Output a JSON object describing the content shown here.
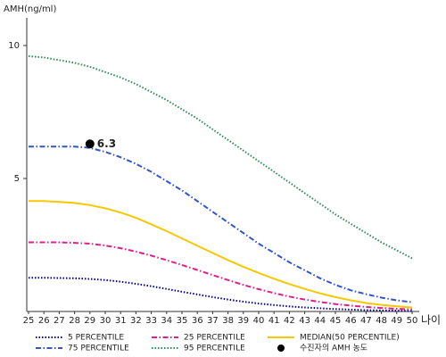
{
  "chart_data": {
    "type": "line",
    "y_label": "AMH(ng/ml)",
    "x_label": "나이",
    "x": [
      25,
      26,
      27,
      28,
      29,
      30,
      31,
      32,
      33,
      34,
      35,
      36,
      37,
      38,
      39,
      40,
      41,
      42,
      43,
      44,
      45,
      46,
      47,
      48,
      49,
      50
    ],
    "xlim": [
      25,
      50
    ],
    "xticks": [
      25,
      26,
      27,
      28,
      29,
      30,
      31,
      32,
      33,
      34,
      35,
      36,
      37,
      38,
      39,
      40,
      41,
      42,
      43,
      44,
      45,
      46,
      47,
      48,
      49,
      50
    ],
    "ylim": [
      0,
      11
    ],
    "yticks": [
      5,
      10
    ],
    "series": [
      {
        "name": "5 PERCENTILE",
        "color": "#00008b",
        "line_style": "dotted",
        "values": [
          1.27,
          1.27,
          1.26,
          1.25,
          1.22,
          1.18,
          1.12,
          1.04,
          0.95,
          0.85,
          0.74,
          0.64,
          0.54,
          0.45,
          0.37,
          0.3,
          0.24,
          0.19,
          0.15,
          0.12,
          0.09,
          0.07,
          0.05,
          0.04,
          0.03,
          0.02
        ]
      },
      {
        "name": "25 PERCENTILE",
        "color": "#e0208a",
        "line_style": "dashdot",
        "values": [
          2.6,
          2.6,
          2.6,
          2.58,
          2.55,
          2.48,
          2.38,
          2.25,
          2.1,
          1.93,
          1.75,
          1.56,
          1.37,
          1.18,
          1.0,
          0.84,
          0.69,
          0.56,
          0.45,
          0.36,
          0.28,
          0.22,
          0.17,
          0.13,
          0.1,
          0.08
        ]
      },
      {
        "name": "MEDIAN(50 PERCENTILE)",
        "color": "#f5c800",
        "line_style": "solid",
        "values": [
          4.15,
          4.15,
          4.12,
          4.08,
          4.0,
          3.88,
          3.72,
          3.52,
          3.28,
          3.02,
          2.75,
          2.47,
          2.2,
          1.93,
          1.68,
          1.45,
          1.23,
          1.03,
          0.85,
          0.68,
          0.54,
          0.42,
          0.32,
          0.25,
          0.19,
          0.15
        ]
      },
      {
        "name": "75 PERCENTILE",
        "color": "#3355cc",
        "line_style": "dashdot",
        "values": [
          6.2,
          6.2,
          6.2,
          6.2,
          6.15,
          6.0,
          5.8,
          5.55,
          5.25,
          4.9,
          4.55,
          4.15,
          3.75,
          3.35,
          2.95,
          2.55,
          2.2,
          1.85,
          1.55,
          1.25,
          1.0,
          0.8,
          0.65,
          0.52,
          0.42,
          0.35
        ]
      },
      {
        "name": "95 PERCENTILE",
        "color": "#2e8b57",
        "line_style": "dotted",
        "values": [
          9.6,
          9.55,
          9.45,
          9.35,
          9.2,
          9.0,
          8.8,
          8.55,
          8.25,
          7.95,
          7.6,
          7.25,
          6.85,
          6.45,
          6.05,
          5.65,
          5.25,
          4.85,
          4.45,
          4.05,
          3.65,
          3.3,
          2.95,
          2.6,
          2.3,
          2.0
        ]
      }
    ],
    "points": [
      {
        "name": "수진자의 AMH 농도",
        "color": "#000000",
        "x": 29,
        "value": 6.3
      }
    ]
  }
}
